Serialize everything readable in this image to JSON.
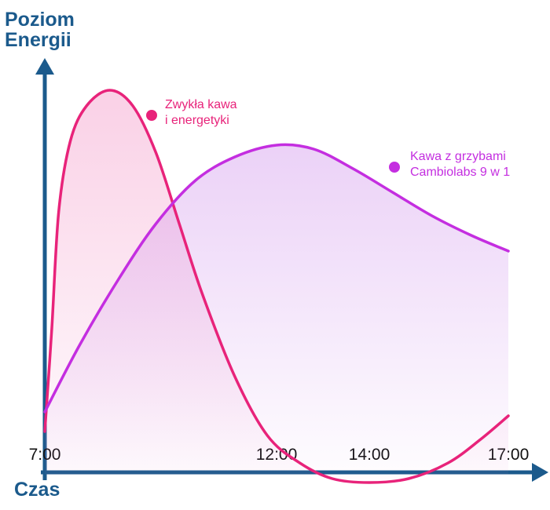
{
  "chart_data": {
    "type": "line",
    "y_label": "Poziom\nEnergii",
    "x_label": "Czas",
    "xlim": [
      7,
      17
    ],
    "ylim": [
      0,
      110
    ],
    "xticks": [
      {
        "value": 7,
        "label": "7:00"
      },
      {
        "value": 12,
        "label": "12:00"
      },
      {
        "value": 14,
        "label": "14:00"
      },
      {
        "value": 17,
        "label": "17:00"
      }
    ],
    "series": [
      {
        "name": "Zwykła kawa\ni energetyki",
        "color": "#e8237a",
        "x": [
          7,
          7.15,
          7.3,
          7.55,
          7.9,
          8.4,
          8.9,
          9.4,
          9.9,
          10.4,
          11.1,
          11.8,
          12.5,
          13.2,
          14,
          14.85,
          15.7,
          16.4,
          17
        ],
        "values": [
          14,
          40,
          70,
          88,
          97,
          101,
          97,
          85,
          67,
          49,
          28,
          13,
          6,
          2,
          1,
          2,
          6,
          12,
          18
        ]
      },
      {
        "name": "Kawa z grzybami\nCambiolabs 9 w 1",
        "color": "#c42ee0",
        "x": [
          7,
          7.75,
          8.6,
          9.4,
          10.25,
          11.1,
          12,
          12.8,
          13.65,
          14.5,
          15.35,
          16.2,
          17
        ],
        "values": [
          19,
          36,
          53,
          67,
          78,
          84,
          87,
          86,
          81,
          75,
          69,
          64,
          60
        ]
      }
    ]
  }
}
